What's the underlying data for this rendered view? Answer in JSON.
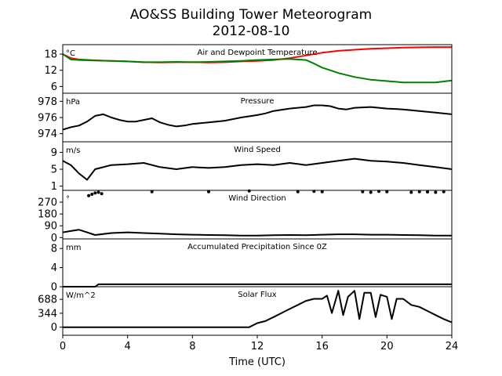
{
  "title": "AO&SS Building Tower Meteorogram",
  "subtitle": "2012-08-10",
  "chart_data": {
    "type": "line",
    "xlabel": "Time (UTC)",
    "x_ticks": [
      0,
      4,
      8,
      12,
      16,
      20,
      24
    ],
    "xlim": [
      0,
      24
    ],
    "panels": [
      {
        "name": "temperature",
        "title": "Air and Dewpoint Temperature",
        "unit": "°C",
        "ylim": [
          3.5,
          21.5
        ],
        "yticks": [
          6,
          12,
          18
        ],
        "series": [
          {
            "color": "#ff0000",
            "x": [
              0,
              0.5,
              1,
              2,
              3,
              4,
              5,
              6,
              7,
              8,
              9,
              10,
              11,
              12,
              13,
              14,
              15,
              16,
              17,
              18,
              19,
              20,
              21,
              22,
              23,
              24
            ],
            "y": [
              18,
              16.5,
              16,
              15.7,
              15.5,
              15.3,
              15,
              14.9,
              15,
              15,
              14.9,
              15,
              15.3,
              15.5,
              15.8,
              16.5,
              17.5,
              18.5,
              19.2,
              19.6,
              20,
              20.2,
              20.4,
              20.5,
              20.6,
              20.6
            ]
          },
          {
            "color": "#008000",
            "x": [
              0,
              0.5,
              1,
              2,
              3,
              4,
              5,
              6,
              7,
              8,
              9,
              10,
              11,
              12,
              13,
              14,
              15,
              15.5,
              16,
              16.5,
              17,
              18,
              19,
              20,
              21,
              22,
              23,
              24
            ],
            "y": [
              18,
              16,
              15.8,
              15.6,
              15.5,
              15.3,
              15,
              15,
              15.1,
              15,
              15.1,
              15.3,
              15.5,
              15.8,
              16,
              16.2,
              15.8,
              14.5,
              13,
              12,
              11,
              9.5,
              8.5,
              8,
              7.5,
              7.5,
              7.5,
              8.2
            ]
          }
        ]
      },
      {
        "name": "pressure",
        "title": "Pressure",
        "unit": "hPa",
        "ylim": [
          973,
          979
        ],
        "yticks": [
          974,
          976,
          978
        ],
        "series": [
          {
            "color": "#000000",
            "x": [
              0,
              0.5,
              1,
              1.5,
              2,
              2.5,
              3,
              3.5,
              4,
              4.5,
              5,
              5.5,
              6,
              6.5,
              7,
              7.5,
              8,
              9,
              10,
              11,
              12,
              12.5,
              13,
              14,
              15,
              15.5,
              16,
              16.5,
              17,
              17.5,
              18,
              19,
              20,
              21,
              22,
              23,
              24
            ],
            "y": [
              974.5,
              974.8,
              975,
              975.5,
              976.2,
              976.4,
              976,
              975.7,
              975.5,
              975.5,
              975.7,
              975.9,
              975.4,
              975.1,
              974.9,
              975,
              975.2,
              975.4,
              975.6,
              976,
              976.3,
              976.5,
              976.8,
              977.1,
              977.3,
              977.5,
              977.5,
              977.4,
              977.1,
              977,
              977.2,
              977.3,
              977.1,
              977,
              976.8,
              976.6,
              976.4
            ]
          }
        ]
      },
      {
        "name": "wind_speed",
        "title": "Wind Speed",
        "unit": "m/s",
        "ylim": [
          0,
          11.5
        ],
        "yticks": [
          1,
          5,
          9
        ],
        "series": [
          {
            "color": "#000000",
            "x": [
              0,
              0.5,
              1,
              1.5,
              2,
              3,
              4,
              5,
              6,
              7,
              8,
              9,
              10,
              11,
              12,
              13,
              14,
              15,
              16,
              17,
              18,
              19,
              20,
              21,
              22,
              23,
              24
            ],
            "y": [
              7,
              6,
              4,
              2.5,
              5,
              6,
              6.2,
              6.5,
              5.5,
              5,
              5.5,
              5.3,
              5.5,
              6,
              6.2,
              6,
              6.5,
              6,
              6.5,
              7,
              7.5,
              7,
              6.8,
              6.5,
              6,
              5.5,
              5
            ]
          }
        ]
      },
      {
        "name": "wind_direction",
        "title": "Wind Direction",
        "unit": "°",
        "ylim": [
          -10,
          360
        ],
        "yticks": [
          0,
          90,
          180,
          270
        ],
        "series": [
          {
            "color": "#000000",
            "x": [
              0,
              0.5,
              1,
              1.5,
              2,
              3,
              4,
              5,
              6,
              7,
              8,
              9,
              10,
              11,
              12,
              13,
              14,
              15,
              16,
              17,
              18,
              19,
              20,
              21,
              22,
              23,
              24
            ],
            "y": [
              40,
              50,
              60,
              40,
              20,
              35,
              40,
              35,
              30,
              25,
              22,
              20,
              18,
              15,
              15,
              18,
              20,
              18,
              22,
              25,
              25,
              22,
              22,
              20,
              18,
              15,
              15
            ]
          },
          {
            "color": "#000000",
            "x": [
              1.6,
              1.8,
              2,
              2.2,
              2.4,
              5.5,
              9,
              11.5,
              14.5,
              15.5,
              16,
              18.5,
              19,
              19.5,
              20,
              21.5,
              22,
              22.5,
              23,
              23.5
            ],
            "y": [
              320,
              330,
              340,
              345,
              335,
              350,
              350,
              355,
              350,
              352,
              350,
              350,
              345,
              352,
              350,
              345,
              350,
              348,
              345,
              350
            ]
          }
        ]
      },
      {
        "name": "precipitation",
        "title": "Accumulated Precipitation Since 0Z",
        "unit": "mm",
        "ylim": [
          0,
          10
        ],
        "yticks": [
          0,
          4,
          8
        ],
        "series": [
          {
            "color": "#000000",
            "x": [
              0,
              2,
              2.2,
              24
            ],
            "y": [
              0,
              0,
              0.5,
              0.5
            ]
          }
        ]
      },
      {
        "name": "solar_flux",
        "title": "Solar Flux",
        "unit": "W/m^2",
        "ylim": [
          -200,
          1000
        ],
        "yticks": [
          0,
          344,
          688
        ],
        "series": [
          {
            "color": "#000000",
            "x": [
              0,
              11.5,
              12,
              12.5,
              13,
              13.5,
              14,
              14.5,
              15,
              15.5,
              16,
              16.3,
              16.6,
              17,
              17.3,
              17.6,
              18,
              18.3,
              18.6,
              19,
              19.3,
              19.6,
              20,
              20.3,
              20.6,
              21,
              21.5,
              22,
              22.5,
              23,
              23.5,
              24
            ],
            "y": [
              0,
              0,
              100,
              150,
              250,
              350,
              450,
              550,
              650,
              700,
              700,
              780,
              350,
              900,
              300,
              750,
              900,
              200,
              850,
              850,
              250,
              800,
              750,
              200,
              700,
              700,
              550,
              500,
              400,
              300,
              200,
              120
            ]
          }
        ]
      }
    ]
  }
}
